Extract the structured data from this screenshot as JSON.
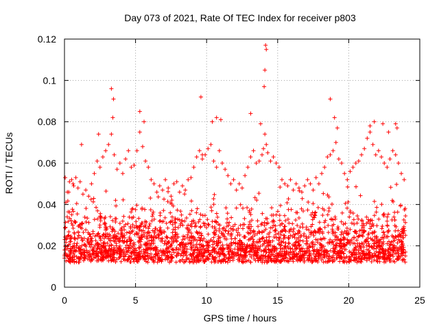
{
  "chart_data": {
    "type": "scatter",
    "title": "Day 073 of 2021, Rate Of TEC Index for receiver p803",
    "xlabel": "GPS time / hours",
    "ylabel": "ROTI / TECUs",
    "xlim": [
      0,
      25
    ],
    "ylim": [
      0,
      0.12
    ],
    "xticks": [
      0,
      5,
      10,
      15,
      20,
      25
    ],
    "xtick_labels": [
      "0",
      "5",
      "10",
      "15",
      "20",
      "25"
    ],
    "yticks": [
      0,
      0.02,
      0.04,
      0.06,
      0.08,
      0.1,
      0.12
    ],
    "ytick_labels": [
      "0",
      "0.02",
      "0.04",
      "0.06",
      "0.08",
      "0.1",
      "0.12"
    ],
    "grid": true,
    "marker": "+",
    "color": "#ff0000",
    "series": [
      {
        "name": "ROTI",
        "x": [
          0.05,
          0.2,
          0.35,
          0.5,
          0.65,
          0.8,
          0.95,
          1.1,
          1.3,
          1.5,
          1.7,
          1.9,
          2.1,
          2.3,
          2.5,
          2.7,
          2.9,
          3.1,
          3.3,
          3.4,
          3.5,
          3.7,
          3.9,
          4.1,
          4.3,
          4.5,
          4.7,
          4.9,
          5.1,
          5.3,
          5.5,
          5.7,
          5.9,
          6.1,
          6.3,
          6.5,
          6.7,
          6.9,
          7.1,
          7.3,
          7.5,
          7.7,
          7.9,
          8.1,
          8.3,
          8.5,
          8.7,
          8.9,
          9.1,
          9.3,
          9.5,
          9.7,
          9.9,
          10.1,
          10.3,
          10.5,
          10.7,
          10.9,
          11.1,
          11.3,
          11.5,
          11.7,
          11.9,
          12.1,
          12.3,
          12.5,
          12.7,
          12.9,
          13.1,
          13.3,
          13.5,
          13.7,
          13.9,
          14.0,
          14.1,
          14.2,
          14.3,
          14.5,
          14.7,
          14.9,
          15.1,
          15.3,
          15.5,
          15.7,
          15.9,
          16.1,
          16.3,
          16.5,
          16.7,
          16.9,
          17.1,
          17.3,
          17.5,
          17.7,
          17.9,
          18.1,
          18.3,
          18.5,
          18.7,
          18.9,
          19.1,
          19.3,
          19.5,
          19.7,
          19.9,
          20.1,
          20.3,
          20.5,
          20.7,
          20.9,
          21.1,
          21.3,
          21.5,
          21.7,
          21.9,
          22.1,
          22.3,
          22.5,
          22.7,
          22.9,
          23.1,
          23.3,
          23.5,
          23.7,
          23.9,
          0.1,
          0.3,
          0.6,
          1.2,
          2.4,
          3.3,
          3.45,
          5.3,
          5.6,
          9.6,
          9.7,
          10.4,
          10.7,
          11.0,
          13.1,
          13.8,
          14.05,
          14.1,
          14.15,
          14.2,
          18.7,
          19.0,
          19.2,
          21.5,
          21.8,
          22.4,
          22.8,
          23.3,
          23.4
        ],
        "y": [
          0.053,
          0.046,
          0.051,
          0.052,
          0.049,
          0.053,
          0.048,
          0.051,
          0.045,
          0.047,
          0.044,
          0.05,
          0.055,
          0.061,
          0.058,
          0.063,
          0.066,
          0.069,
          0.074,
          0.082,
          0.064,
          0.057,
          0.06,
          0.055,
          0.062,
          0.066,
          0.058,
          0.059,
          0.066,
          0.075,
          0.068,
          0.061,
          0.058,
          0.052,
          0.05,
          0.046,
          0.049,
          0.047,
          0.052,
          0.048,
          0.044,
          0.05,
          0.051,
          0.046,
          0.049,
          0.047,
          0.052,
          0.053,
          0.058,
          0.063,
          0.066,
          0.062,
          0.064,
          0.067,
          0.069,
          0.061,
          0.058,
          0.066,
          0.06,
          0.057,
          0.054,
          0.05,
          0.052,
          0.047,
          0.05,
          0.048,
          0.054,
          0.058,
          0.063,
          0.066,
          0.06,
          0.061,
          0.064,
          0.067,
          0.074,
          0.069,
          0.065,
          0.061,
          0.063,
          0.06,
          0.058,
          0.052,
          0.05,
          0.049,
          0.052,
          0.047,
          0.05,
          0.048,
          0.046,
          0.049,
          0.052,
          0.05,
          0.047,
          0.053,
          0.05,
          0.055,
          0.058,
          0.063,
          0.064,
          0.066,
          0.07,
          0.062,
          0.06,
          0.055,
          0.052,
          0.056,
          0.058,
          0.06,
          0.061,
          0.064,
          0.067,
          0.072,
          0.075,
          0.069,
          0.064,
          0.066,
          0.063,
          0.06,
          0.058,
          0.062,
          0.066,
          0.064,
          0.06,
          0.055,
          0.052,
          0.041,
          0.046,
          0.05,
          0.069,
          0.074,
          0.096,
          0.091,
          0.085,
          0.08,
          0.092,
          0.064,
          0.08,
          0.082,
          0.081,
          0.084,
          0.079,
          0.097,
          0.105,
          0.117,
          0.115,
          0.091,
          0.082,
          0.077,
          0.078,
          0.08,
          0.079,
          0.075,
          0.079,
          0.077
        ]
      }
    ]
  }
}
